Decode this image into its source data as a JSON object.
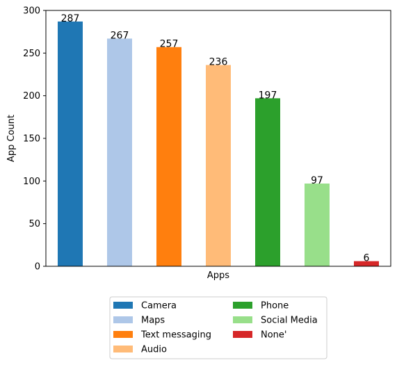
{
  "chart_data": {
    "type": "bar",
    "title": "",
    "xlabel": "Apps",
    "ylabel": "App Count",
    "ylim": [
      0,
      300
    ],
    "yticks": [
      0,
      50,
      100,
      150,
      200,
      250,
      300
    ],
    "categories": [
      "Camera",
      "Maps",
      "Text messaging",
      "Audio",
      "Phone",
      "Social Media",
      "None'"
    ],
    "values": [
      287,
      267,
      257,
      236,
      197,
      97,
      6
    ],
    "colors": [
      "#1f77b4",
      "#aec7e8",
      "#ff7f0e",
      "#ffbb78",
      "#2ca02c",
      "#98df8a",
      "#d62728"
    ],
    "legend": {
      "entries": [
        "Camera",
        "Maps",
        "Text messaging",
        "Audio",
        "Phone",
        "Social Media",
        "None'"
      ],
      "placement": "bottom-center",
      "columns": 2
    },
    "grid": false
  }
}
